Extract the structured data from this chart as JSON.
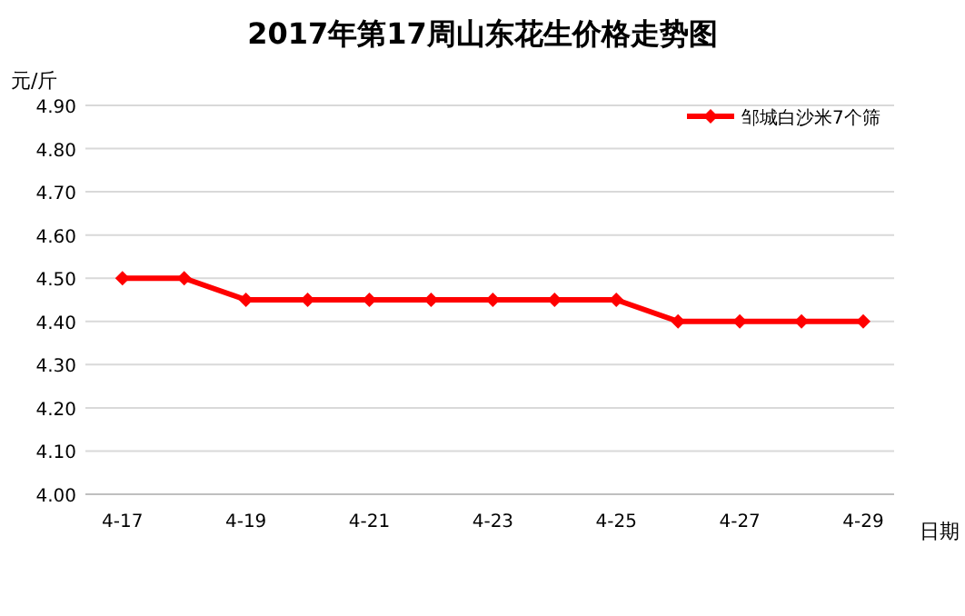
{
  "chart_data": {
    "type": "line",
    "title": "2017年第17周山东花生价格走势图",
    "xlabel": "日期",
    "ylabel": "元/斤",
    "categories": [
      "4-17",
      null,
      "4-19",
      null,
      "4-21",
      null,
      "4-23",
      null,
      "4-25",
      null,
      "4-27",
      null,
      "4-29"
    ],
    "series": [
      {
        "name": "邹城白沙米7个筛",
        "color": "#ff0000",
        "values": [
          4.5,
          4.5,
          4.45,
          4.45,
          4.45,
          4.45,
          4.45,
          4.45,
          4.45,
          4.4,
          4.4,
          4.4,
          4.4
        ]
      }
    ],
    "ylim": [
      4.0,
      4.9
    ],
    "yticks": [
      {
        "value": 4.0,
        "label": "4.00"
      },
      {
        "value": 4.1,
        "label": "4.10"
      },
      {
        "value": 4.2,
        "label": "4.20"
      },
      {
        "value": 4.3,
        "label": "4.30"
      },
      {
        "value": 4.4,
        "label": "4.40"
      },
      {
        "value": 4.5,
        "label": "4.50"
      },
      {
        "value": 4.6,
        "label": "4.60"
      },
      {
        "value": 4.7,
        "label": "4.70"
      },
      {
        "value": 4.8,
        "label": "4.80"
      },
      {
        "value": 4.9,
        "label": "4.90"
      }
    ],
    "grid": "y",
    "legend": "top right",
    "marker": "diamond",
    "line_style": "solid"
  }
}
